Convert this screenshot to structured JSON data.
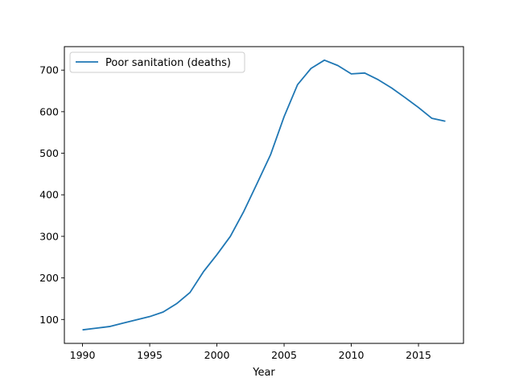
{
  "chart_data": {
    "type": "line",
    "title": "",
    "xlabel": "Year",
    "ylabel": "",
    "xlim": [
      1988.65,
      2018.35
    ],
    "ylim": [
      42.5,
      756.5
    ],
    "x_ticks": [
      1990,
      1995,
      2000,
      2005,
      2010,
      2015
    ],
    "y_ticks": [
      100,
      200,
      300,
      400,
      500,
      600,
      700
    ],
    "grid": false,
    "legend_position": "upper left",
    "series": [
      {
        "name": "Poor sanitation (deaths)",
        "color": "#1f77b4",
        "x": [
          1990,
          1991,
          1992,
          1993,
          1994,
          1995,
          1996,
          1997,
          1998,
          1999,
          2000,
          2001,
          2002,
          2003,
          2004,
          2005,
          2006,
          2007,
          2008,
          2009,
          2010,
          2011,
          2012,
          2013,
          2014,
          2015,
          2016,
          2017
        ],
        "y": [
          75,
          79,
          83,
          91,
          99,
          107,
          118,
          138,
          165,
          215,
          256,
          300,
          360,
          428,
          497,
          588,
          665,
          704,
          724,
          711,
          691,
          693,
          677,
          657,
          634,
          610,
          584,
          577
        ]
      }
    ]
  }
}
